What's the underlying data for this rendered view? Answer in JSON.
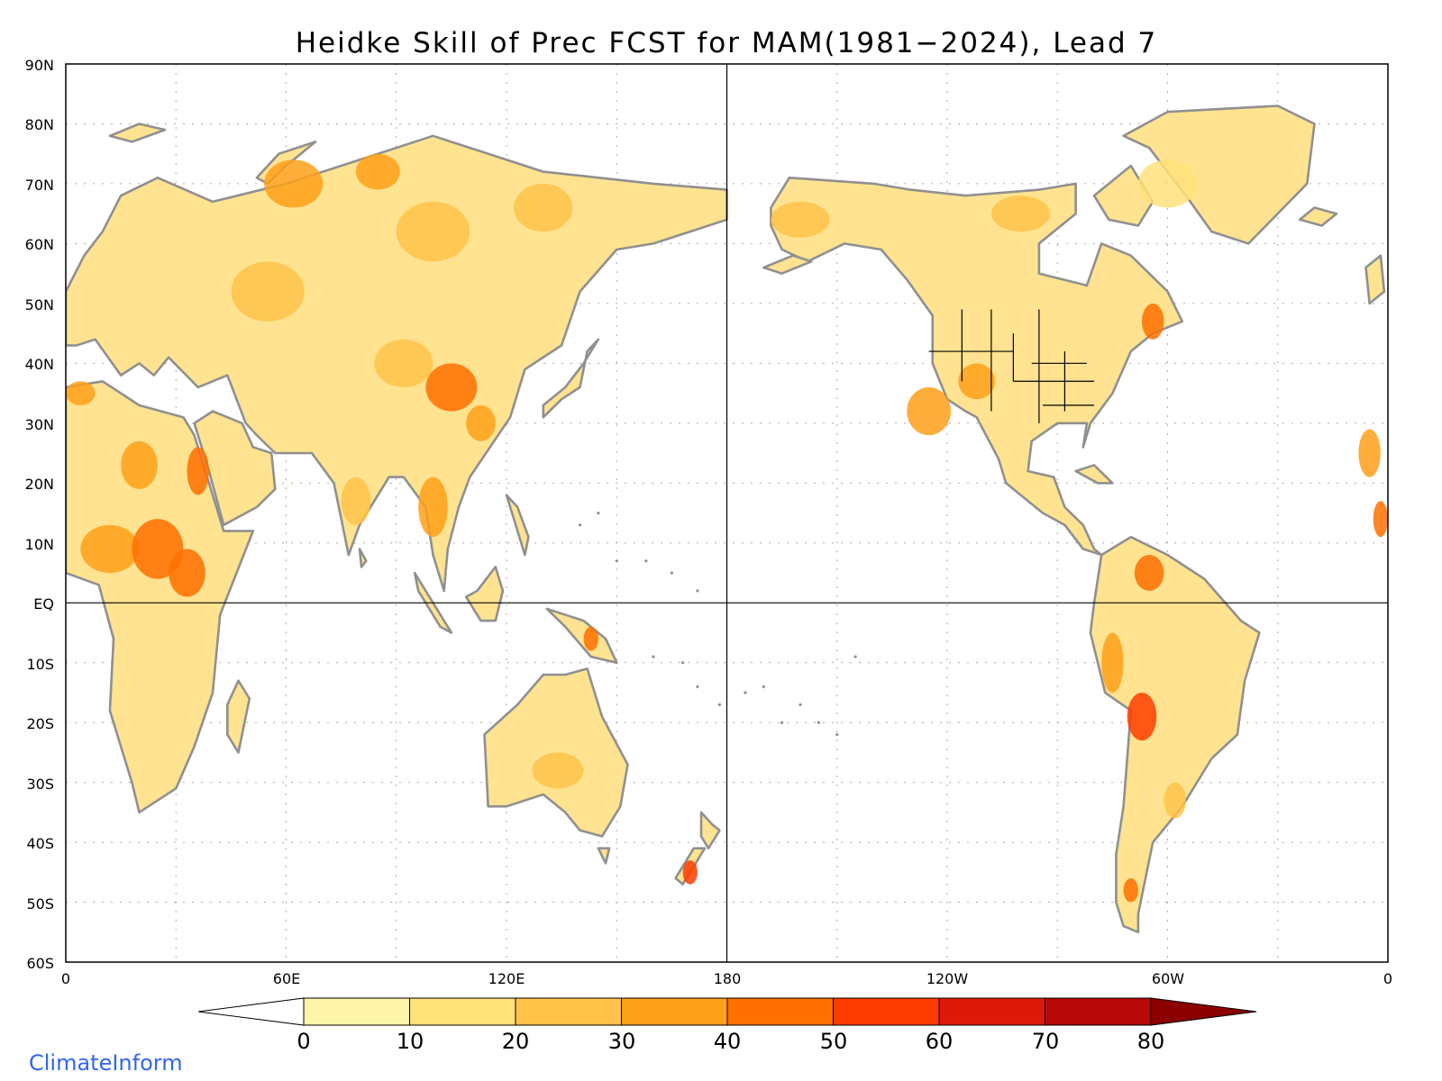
{
  "map": {
    "title": "Heidke Skill of Prec FCST for MAM(1981−2024), Lead 7",
    "lat_labels": [
      "90N",
      "80N",
      "70N",
      "60N",
      "50N",
      "40N",
      "30N",
      "20N",
      "10N",
      "EQ",
      "10S",
      "20S",
      "30S",
      "40S",
      "50S",
      "60S"
    ],
    "lon_labels": [
      "0",
      "60E",
      "120E",
      "180",
      "120W",
      "60W",
      "0"
    ],
    "colorbar": {
      "labels": [
        "0",
        "10",
        "20",
        "30",
        "40",
        "50",
        "60",
        "70",
        "80"
      ],
      "colors": [
        "#ffffff",
        "#fff5a8",
        "#ffe27a",
        "#ffc34a",
        "#ffa01a",
        "#ff7000",
        "#ff3c00",
        "#dd1a0a",
        "#b80808",
        "#8c0000"
      ]
    },
    "colors": {
      "coast": "#909090",
      "us_states": "#000000",
      "grid_dots": "#aaaaaa"
    }
  },
  "footer": {
    "brand": "ClimateInform"
  }
}
